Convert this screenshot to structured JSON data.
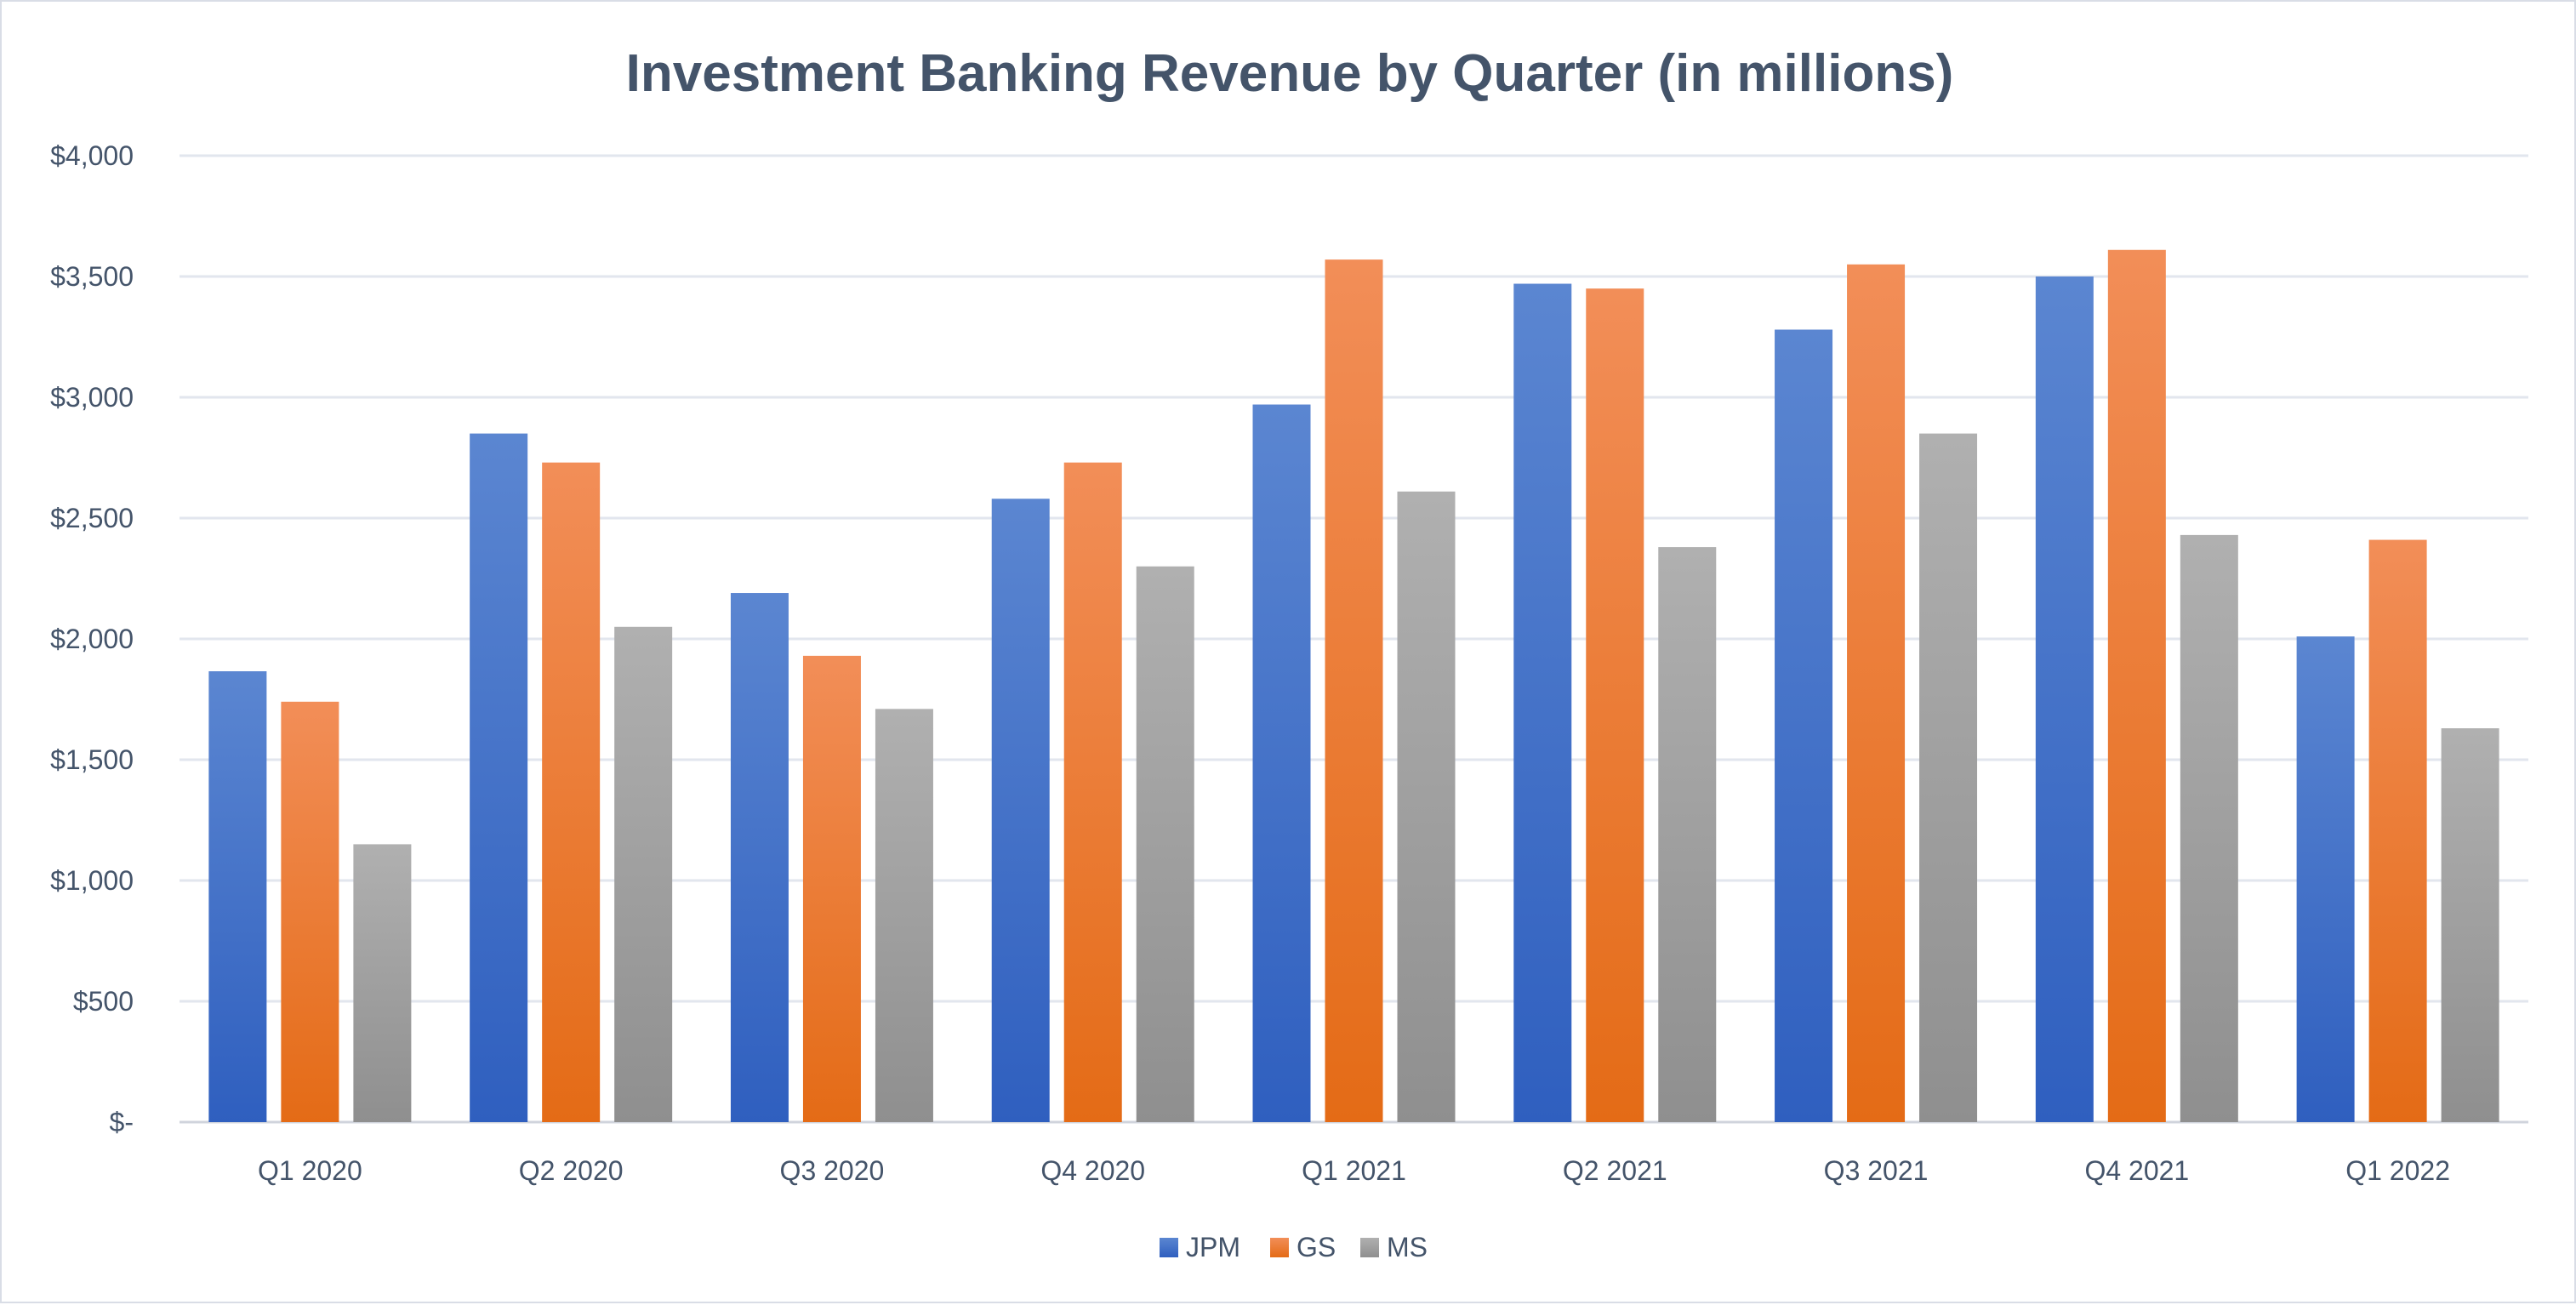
{
  "chart_data": {
    "type": "bar",
    "title": "Investment Banking Revenue by Quarter (in millions)",
    "xlabel": "",
    "ylabel": "",
    "ylim": [
      0,
      4000
    ],
    "yticks": [
      0,
      500,
      1000,
      1500,
      2000,
      2500,
      3000,
      3500,
      4000
    ],
    "ytick_labels": [
      "$-",
      "$500",
      "$1,000",
      "$1,500",
      "$2,000",
      "$2,500",
      "$3,000",
      "$3,500",
      "$4,000"
    ],
    "grid": true,
    "legend_position": "bottom",
    "categories": [
      "Q1 2020",
      "Q2 2020",
      "Q3 2020",
      "Q4 2020",
      "Q1 2021",
      "Q2 2021",
      "Q3 2021",
      "Q4 2021",
      "Q1 2022"
    ],
    "series": [
      {
        "name": "JPM",
        "color": "#4472c4",
        "values": [
          1866,
          2850,
          2190,
          2580,
          2970,
          3470,
          3280,
          3500,
          2010
        ]
      },
      {
        "name": "GS",
        "color": "#ed7d31",
        "values": [
          1740,
          2730,
          1930,
          2730,
          3570,
          3450,
          3550,
          3610,
          2410
        ]
      },
      {
        "name": "MS",
        "color": "#a5a5a5",
        "values": [
          1150,
          2050,
          1710,
          2300,
          2610,
          2380,
          2850,
          2430,
          1630
        ]
      }
    ]
  }
}
